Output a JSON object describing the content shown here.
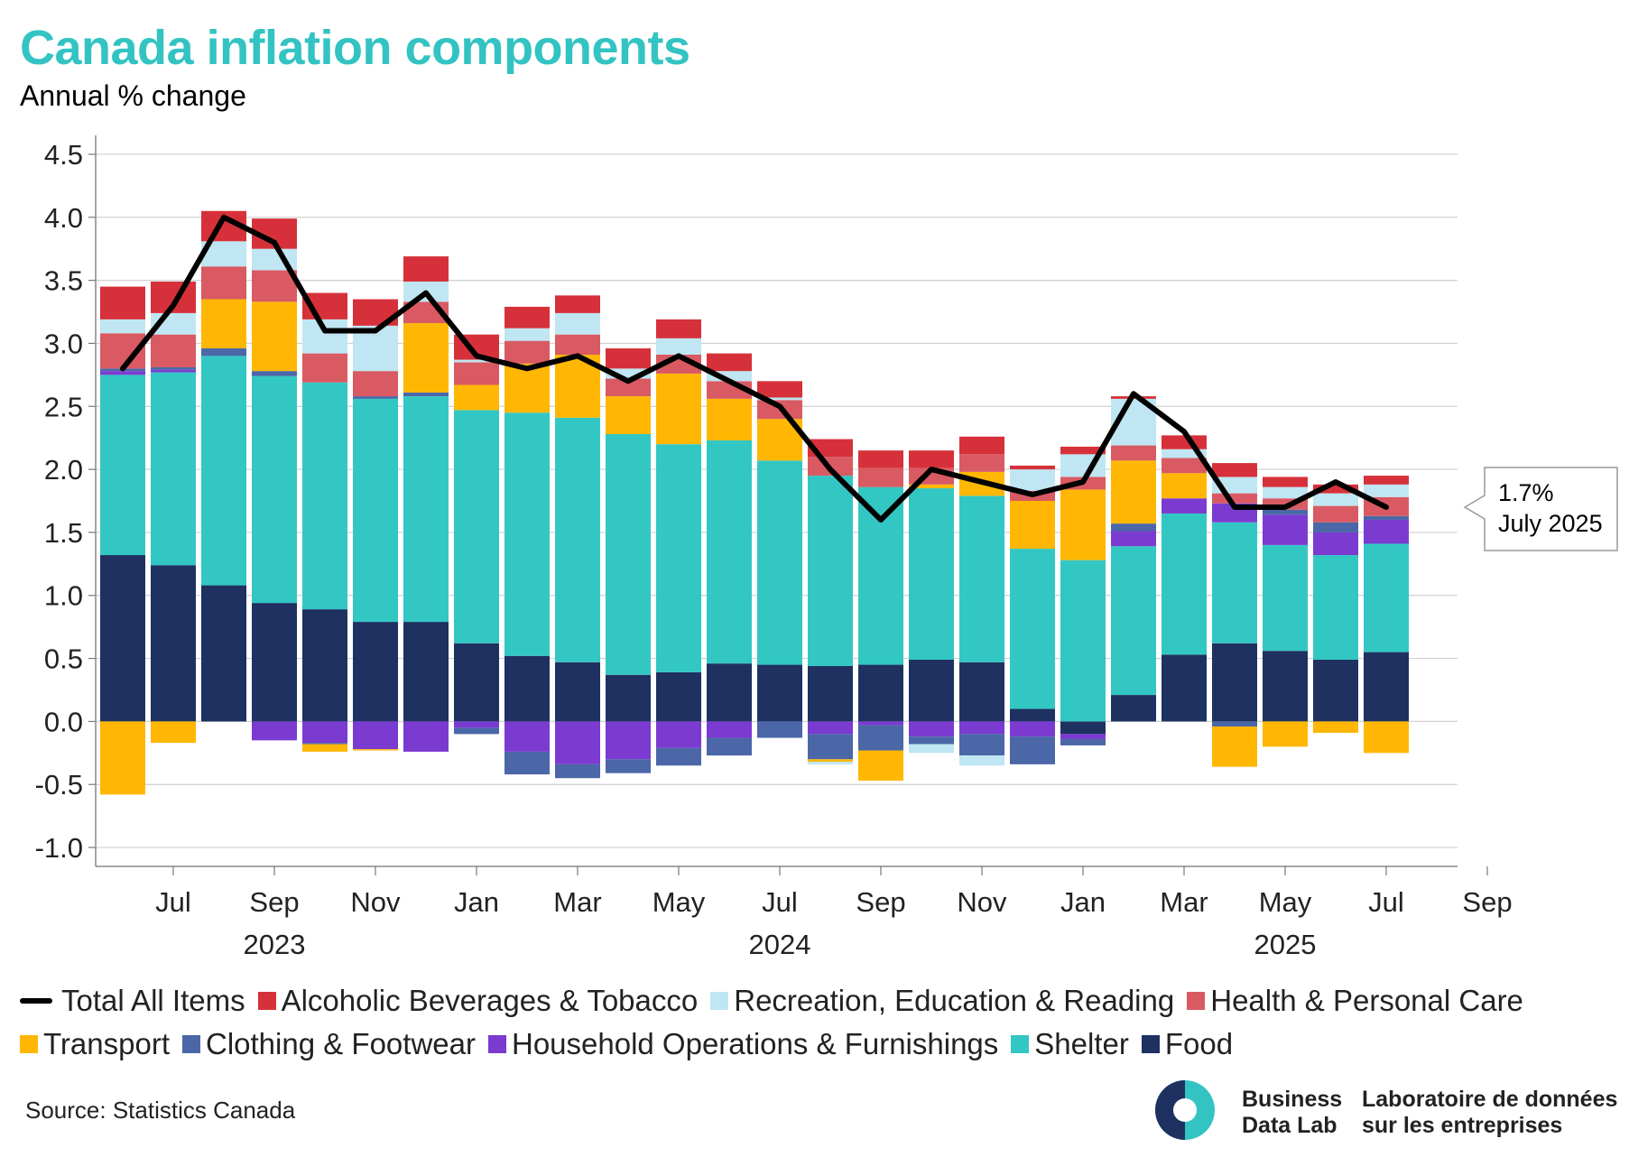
{
  "title": "Canada inflation components",
  "subtitle": "Annual % change",
  "source": "Source: Statistics Canada",
  "brand": {
    "en_line1": "Business",
    "en_line2": "Data Lab",
    "fr_line1": "Laboratoire de données",
    "fr_line2": "sur les entreprises"
  },
  "legend": {
    "row1": [
      {
        "label": "Total All Items",
        "kind": "line",
        "color": "#000000"
      },
      {
        "label": "Alcoholic Beverages & Tobacco",
        "kind": "box",
        "color": "#d6313a"
      },
      {
        "label": "Recreation, Education & Reading",
        "kind": "box",
        "color": "#bfe6f2"
      },
      {
        "label": "Health & Personal Care",
        "kind": "box",
        "color": "#d95a62"
      }
    ],
    "row2": [
      {
        "label": "Transport",
        "kind": "box",
        "color": "#ffb703"
      },
      {
        "label": "Clothing & Footwear",
        "kind": "box",
        "color": "#4b67a8"
      },
      {
        "label": "Household Operations & Furnishings",
        "kind": "box",
        "color": "#7b3bd1"
      },
      {
        "label": "Shelter",
        "kind": "box",
        "color": "#33c7c4"
      },
      {
        "label": "Food",
        "kind": "box",
        "color": "#1e3160"
      }
    ]
  },
  "chart_data": {
    "type": "bar",
    "stacked": true,
    "title": "Canada inflation components",
    "subtitle": "Annual % change",
    "x": [
      "2023-06",
      "2023-07",
      "2023-08",
      "2023-09",
      "2023-10",
      "2023-11",
      "2023-12",
      "2024-01",
      "2024-02",
      "2024-03",
      "2024-04",
      "2024-05",
      "2024-06",
      "2024-07",
      "2024-08",
      "2024-09",
      "2024-10",
      "2024-11",
      "2024-12",
      "2025-01",
      "2025-02",
      "2025-03",
      "2025-04",
      "2025-05",
      "2025-06",
      "2025-07"
    ],
    "x_ticks": [
      {
        "date": "2023-07",
        "label": "Jul"
      },
      {
        "date": "2023-09",
        "label": "Sep"
      },
      {
        "date": "2023-11",
        "label": "Nov"
      },
      {
        "date": "2024-01",
        "label": "Jan"
      },
      {
        "date": "2024-03",
        "label": "Mar"
      },
      {
        "date": "2024-05",
        "label": "May"
      },
      {
        "date": "2024-07",
        "label": "Jul"
      },
      {
        "date": "2024-09",
        "label": "Sep"
      },
      {
        "date": "2024-11",
        "label": "Nov"
      },
      {
        "date": "2025-01",
        "label": "Jan"
      },
      {
        "date": "2025-03",
        "label": "Mar"
      },
      {
        "date": "2025-05",
        "label": "May"
      },
      {
        "date": "2025-07",
        "label": "Jul"
      },
      {
        "date": "2025-09",
        "label": "Sep"
      }
    ],
    "year_labels": [
      {
        "date": "2023-09",
        "label": "2023"
      },
      {
        "date": "2024-07",
        "label": "2024"
      },
      {
        "date": "2025-05",
        "label": "2025"
      }
    ],
    "y_ticks": [
      "4.5",
      "4.0",
      "3.5",
      "3.0",
      "2.5",
      "2.0",
      "1.5",
      "1.0",
      "0.5",
      "0.0",
      "-0.5",
      "-1.0"
    ],
    "ylim": [
      -1.15,
      4.65
    ],
    "grid": true,
    "legend_position": "bottom",
    "series": [
      {
        "name": "Food",
        "color": "#1e3160",
        "values": [
          1.32,
          1.24,
          1.08,
          0.94,
          0.89,
          0.79,
          0.79,
          0.62,
          0.52,
          0.47,
          0.37,
          0.39,
          0.46,
          0.45,
          0.44,
          0.45,
          0.49,
          0.47,
          0.1,
          -0.1,
          0.21,
          0.53,
          0.62,
          0.56,
          0.49,
          0.55
        ]
      },
      {
        "name": "Shelter",
        "color": "#33c7c4",
        "values": [
          1.43,
          1.53,
          1.82,
          1.8,
          1.8,
          1.77,
          1.79,
          1.85,
          1.93,
          1.94,
          1.91,
          1.81,
          1.77,
          1.62,
          1.51,
          1.41,
          1.36,
          1.32,
          1.27,
          1.28,
          1.18,
          1.12,
          0.96,
          0.84,
          0.83,
          0.86
        ]
      },
      {
        "name": "Household Operations & Furnishings",
        "color": "#7b3bd1",
        "values": [
          0.03,
          0.02,
          0.0,
          -0.15,
          -0.17,
          -0.22,
          -0.24,
          -0.05,
          -0.24,
          -0.34,
          -0.3,
          -0.21,
          -0.13,
          0.0,
          -0.1,
          -0.03,
          -0.12,
          -0.1,
          -0.12,
          -0.04,
          0.12,
          0.12,
          0.15,
          0.24,
          0.18,
          0.19
        ]
      },
      {
        "name": "Clothing & Footwear",
        "color": "#4b67a8",
        "values": [
          0.02,
          0.02,
          0.06,
          0.04,
          -0.01,
          0.02,
          0.03,
          -0.05,
          -0.18,
          -0.11,
          -0.11,
          -0.14,
          -0.14,
          -0.13,
          -0.2,
          -0.2,
          -0.06,
          -0.17,
          -0.22,
          -0.05,
          0.06,
          0.0,
          -0.04,
          0.04,
          0.08,
          0.03
        ]
      },
      {
        "name": "Transport",
        "color": "#ffb703",
        "values": [
          -0.58,
          -0.17,
          0.39,
          0.55,
          -0.06,
          -0.01,
          0.55,
          0.2,
          0.39,
          0.5,
          0.3,
          0.56,
          0.33,
          0.33,
          -0.02,
          -0.24,
          0.03,
          0.19,
          0.38,
          0.56,
          0.5,
          0.2,
          -0.32,
          -0.2,
          -0.09,
          -0.25
        ]
      },
      {
        "name": "Health & Personal Care",
        "color": "#d95a62",
        "values": [
          0.28,
          0.26,
          0.26,
          0.25,
          0.23,
          0.2,
          0.17,
          0.18,
          0.18,
          0.16,
          0.14,
          0.15,
          0.14,
          0.15,
          0.15,
          0.15,
          0.13,
          0.14,
          0.08,
          0.1,
          0.12,
          0.12,
          0.08,
          0.09,
          0.13,
          0.15
        ]
      },
      {
        "name": "Recreation, Education & Reading",
        "color": "#bfe6f2",
        "values": [
          0.11,
          0.17,
          0.2,
          0.17,
          0.27,
          0.36,
          0.16,
          0.02,
          0.1,
          0.17,
          0.08,
          0.13,
          0.08,
          0.02,
          -0.02,
          0.0,
          -0.07,
          -0.08,
          0.17,
          0.18,
          0.37,
          0.07,
          0.13,
          0.09,
          0.1,
          0.1
        ]
      },
      {
        "name": "Alcoholic Beverages & Tobacco",
        "color": "#d6313a",
        "values": [
          0.26,
          0.25,
          0.24,
          0.24,
          0.21,
          0.21,
          0.2,
          0.2,
          0.17,
          0.14,
          0.16,
          0.15,
          0.14,
          0.13,
          0.14,
          0.14,
          0.14,
          0.14,
          0.03,
          0.06,
          0.02,
          0.11,
          0.11,
          0.08,
          0.07,
          0.07
        ]
      }
    ],
    "line": {
      "name": "Total All Items",
      "color": "#000000",
      "values": [
        2.8,
        3.3,
        4.0,
        3.8,
        3.1,
        3.1,
        3.4,
        2.9,
        2.8,
        2.9,
        2.7,
        2.9,
        2.7,
        2.5,
        2.0,
        1.6,
        2.0,
        1.9,
        1.8,
        1.9,
        2.6,
        2.3,
        1.7,
        1.7,
        1.9,
        1.7
      ]
    },
    "annotation": {
      "value": "1.7%",
      "date": "July 2025"
    }
  }
}
